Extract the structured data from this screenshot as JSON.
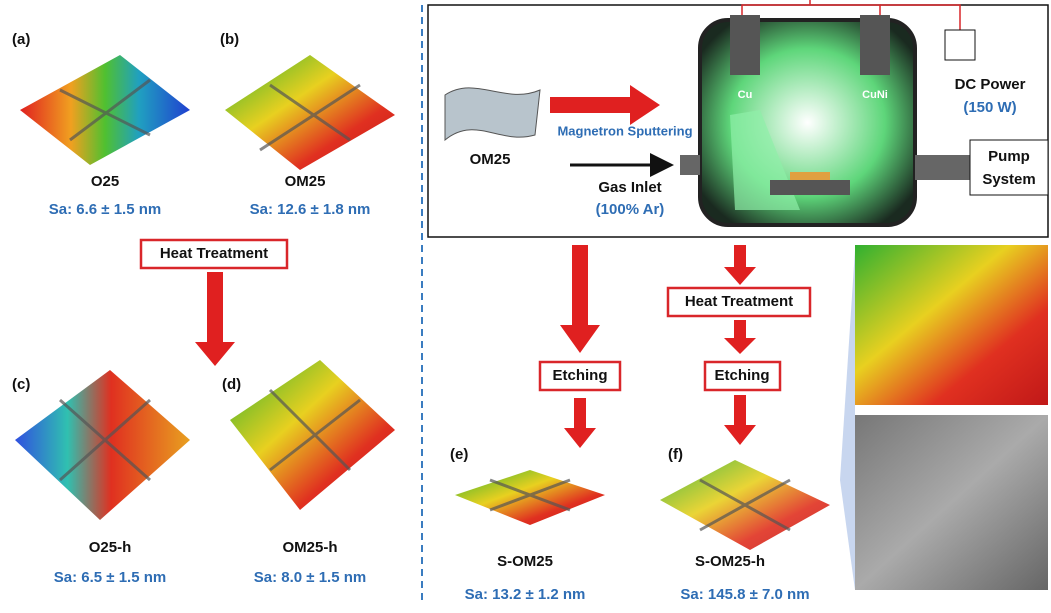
{
  "left_panels": [
    {
      "label": "(a)",
      "name": "O25",
      "roughness": "Sa: 6.6 ± 1.5 nm"
    },
    {
      "label": "(b)",
      "name": "OM25",
      "roughness": "Sa: 12.6 ± 1.8 nm"
    },
    {
      "label": "(c)",
      "name": "O25-h",
      "roughness": "Sa: 6.5 ± 1.5 nm"
    },
    {
      "label": "(d)",
      "name": "OM25-h",
      "roughness": "Sa: 8.0 ± 1.5 nm"
    }
  ],
  "left_step": "Heat Treatment",
  "sputtering": {
    "substrate": "OM25",
    "process": "Magnetron Sputtering",
    "gas": "Gas Inlet",
    "gas_detail": "(100% Ar)",
    "target_1": "Cu",
    "target_2": "CuNi",
    "power": "DC Power",
    "power_detail": "(150 W)",
    "pump_1": "Pump",
    "pump_2": "System"
  },
  "right_steps": {
    "etching_e": "Etching",
    "heat_f": "Heat Treatment",
    "etching_f": "Etching"
  },
  "right_panels": [
    {
      "label": "(e)",
      "name": "S-OM25",
      "roughness": "Sa: 13.2 ± 1.2 nm"
    },
    {
      "label": "(f)",
      "name": "S-OM25-h",
      "roughness": "Sa: 145.8 ± 7.0 nm"
    }
  ]
}
